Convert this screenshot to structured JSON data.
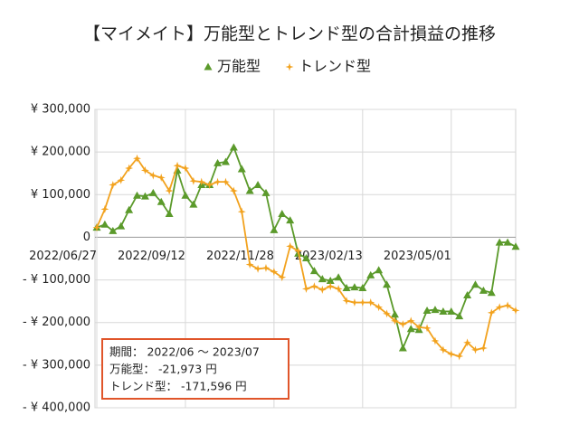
{
  "chart_data": {
    "type": "line",
    "title": "【マイメイト】万能型とトレンド型の合計損益の推移",
    "categories": [
      "2022/06/27",
      null,
      null,
      null,
      null,
      null,
      null,
      null,
      null,
      null,
      null,
      "2022/09/12",
      null,
      null,
      null,
      null,
      null,
      null,
      null,
      null,
      null,
      null,
      "2022/11/28",
      null,
      null,
      null,
      null,
      null,
      null,
      null,
      null,
      null,
      null,
      "2023/02/13",
      null,
      null,
      null,
      null,
      null,
      null,
      null,
      null,
      null,
      null,
      "2023/05/01",
      null,
      null,
      null,
      null,
      null,
      null,
      null,
      null
    ],
    "series": [
      {
        "name": "万能型",
        "color": "#5b9a2b",
        "marker": "triangle",
        "values": [
          23000,
          30000,
          15000,
          26000,
          64000,
          98000,
          96000,
          104000,
          83000,
          55000,
          157000,
          98000,
          77000,
          123000,
          123000,
          174000,
          177000,
          211000,
          160000,
          109000,
          123000,
          104000,
          17000,
          55000,
          40000,
          -38000,
          -49000,
          -79000,
          -98000,
          -102000,
          -94000,
          -119000,
          -117000,
          -119000,
          -89000,
          -77000,
          -111000,
          -181000,
          -260000,
          -215000,
          -217000,
          -172000,
          -170000,
          -174000,
          -174000,
          -185000,
          -136000,
          -111000,
          -125000,
          -130000,
          -12000,
          -12000,
          -21973
        ]
      },
      {
        "name": "トレンド型",
        "color": "#f2a21e",
        "marker": "star",
        "values": [
          23000,
          66000,
          123000,
          134000,
          162000,
          185000,
          157000,
          145000,
          140000,
          109000,
          168000,
          162000,
          132000,
          130000,
          123000,
          130000,
          130000,
          109000,
          60000,
          -64000,
          -74000,
          -72000,
          -81000,
          -94000,
          -21000,
          -32000,
          -121000,
          -115000,
          -123000,
          -115000,
          -121000,
          -149000,
          -153000,
          -153000,
          -153000,
          -164000,
          -179000,
          -196000,
          -204000,
          -196000,
          -211000,
          -213000,
          -243000,
          -264000,
          -274000,
          -279000,
          -247000,
          -264000,
          -260000,
          -177000,
          -164000,
          -160000,
          -171596
        ]
      }
    ],
    "ylim": [
      -400000,
      300000
    ],
    "yticks": [
      {
        "value": -400000,
        "label": "- ¥ 400,000"
      },
      {
        "value": -300000,
        "label": "- ¥ 300,000"
      },
      {
        "value": -200000,
        "label": "- ¥ 200,000"
      },
      {
        "value": -100000,
        "label": "- ¥ 100,000"
      },
      0,
      {
        "value": 100000,
        "label": "¥ 100,000"
      },
      {
        "value": 200000,
        "label": "¥ 200,000"
      },
      {
        "value": 300000,
        "label": "¥ 300,000"
      }
    ],
    "negative_tick_color": "#e0302a",
    "grid": true,
    "legend": "top",
    "annotation": {
      "lines": [
        "期間： 2022/06 ～ 2023/07",
        "万能型： -21,973 円",
        "トレンド型： -171,596 円"
      ],
      "border_color": "#e0552a"
    }
  }
}
